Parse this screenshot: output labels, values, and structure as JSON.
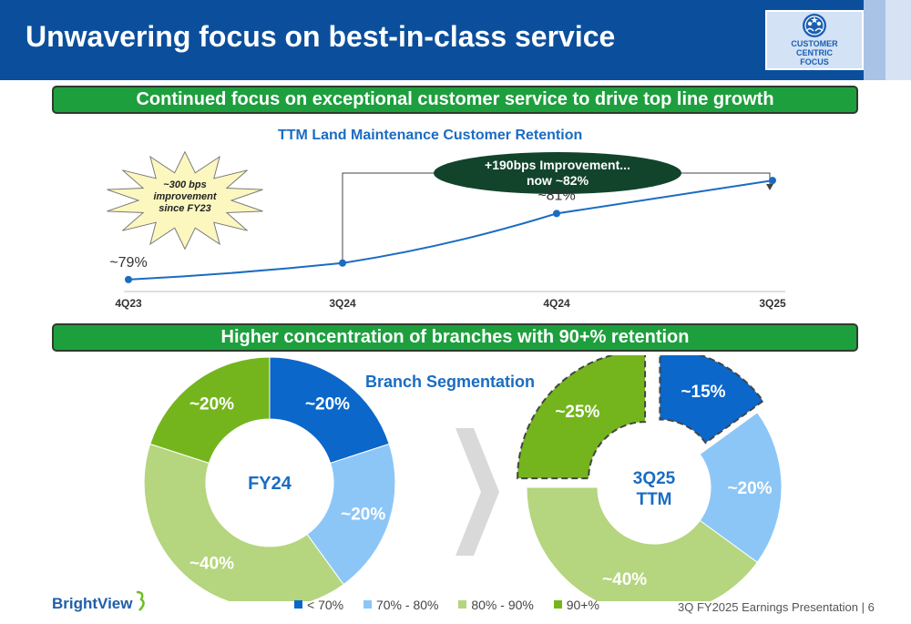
{
  "header": {
    "title": "Unwavering focus on best-in-class service",
    "badge": {
      "icon": "people-group-icon",
      "lines": [
        "CUSTOMER",
        "CENTRIC",
        "FOCUS"
      ]
    }
  },
  "banners": {
    "top": "Continued focus on exceptional customer service to drive top line growth",
    "bottom": "Higher concentration of branches with 90+% retention"
  },
  "retention_callouts": {
    "starburst": [
      "~300 bps",
      "improvement",
      "since FY23"
    ],
    "improvement": [
      "+190bps Improvement...",
      "now ~82%"
    ]
  },
  "segmentation_title": "Branch Segmentation",
  "footer": {
    "logo": "BrightView",
    "presentation": "3Q FY2025 Earnings Presentation | 6"
  },
  "colors": {
    "header": "#0b4f9c",
    "banner": "#1e9f3e",
    "seg_lt70": "#0b67c9",
    "seg_70_80": "#8cc6f7",
    "seg_80_90": "#b5d57e",
    "seg_90plus": "#74b51d",
    "line": "#1a6cc2"
  },
  "chart_data": [
    {
      "type": "line",
      "title": "TTM Land Maintenance Customer Retention",
      "x": [
        "4Q23",
        "3Q24",
        "4Q24",
        "3Q25"
      ],
      "y": [
        79,
        79.5,
        81,
        82
      ],
      "data_labels": [
        "~79%",
        "",
        "~81%",
        ""
      ],
      "ylim": [
        78.5,
        82.5
      ],
      "grid": false
    },
    {
      "type": "pie",
      "title": "Branch Segmentation",
      "center_label": [
        "FY24"
      ],
      "categories": [
        "< 70%",
        "70% - 80%",
        "80% - 90%",
        "90+%"
      ],
      "values": [
        20,
        20,
        40,
        20
      ],
      "data_labels": [
        "~20%",
        "~20%",
        "~40%",
        "~20%"
      ],
      "legend": "bottom"
    },
    {
      "type": "pie",
      "title": "Branch Segmentation",
      "center_label": [
        "3Q25",
        "TTM"
      ],
      "categories": [
        "< 70%",
        "70% - 80%",
        "80% - 90%",
        "90+%"
      ],
      "values": [
        15,
        20,
        40,
        25
      ],
      "data_labels": [
        "~15%",
        "~20%",
        "~40%",
        "~25%"
      ],
      "exploded": [
        "< 70%",
        "90+%"
      ],
      "legend": "bottom"
    }
  ]
}
